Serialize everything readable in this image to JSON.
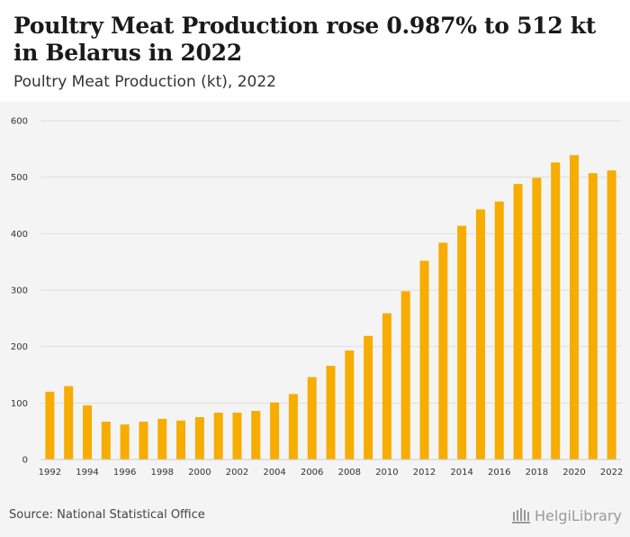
{
  "header": {
    "title": "Poultry Meat Production rose 0.987% to 512 kt in Belarus in 2022",
    "subtitle": "Poultry Meat Production (kt), 2022"
  },
  "footer": {
    "source": "Source: National Statistical Office",
    "logo_text": "HelgiLibrary"
  },
  "colors": {
    "bar": "#f7ac00",
    "grid": "#dddddd",
    "background": "#f4f4f4"
  },
  "chart_data": {
    "type": "bar",
    "title": "",
    "xlabel": "",
    "ylabel": "",
    "ylim": [
      0,
      600
    ],
    "yticks": [
      0,
      100,
      200,
      300,
      400,
      500,
      600
    ],
    "grid": true,
    "categories": [
      1992,
      1993,
      1994,
      1995,
      1996,
      1997,
      1998,
      1999,
      2000,
      2001,
      2002,
      2003,
      2004,
      2005,
      2006,
      2007,
      2008,
      2009,
      2010,
      2011,
      2012,
      2013,
      2014,
      2015,
      2016,
      2017,
      2018,
      2019,
      2020,
      2021,
      2022
    ],
    "xtick_labels": [
      "1992",
      "1994",
      "1996",
      "1998",
      "2000",
      "2002",
      "2004",
      "2006",
      "2008",
      "2010",
      "2012",
      "2014",
      "2016",
      "2018",
      "2020",
      "2022"
    ],
    "values": [
      120,
      130,
      96,
      67,
      62,
      67,
      72,
      69,
      75,
      83,
      83,
      86,
      101,
      116,
      146,
      166,
      193,
      219,
      259,
      298,
      352,
      384,
      414,
      443,
      457,
      488,
      499,
      526,
      539,
      507,
      512
    ]
  }
}
